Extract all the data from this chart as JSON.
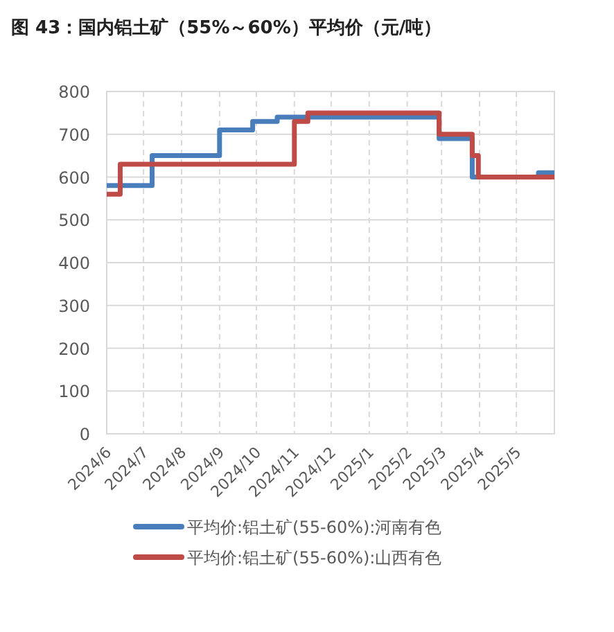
{
  "chart_data": {
    "type": "step",
    "title": "图 43：国内铝土矿（55%～60%）平均价（元/吨）",
    "xlim": [
      "2024-06-01",
      "2025-06-01"
    ],
    "xticks": [
      {
        "value": "2024-06",
        "label": "2024/6"
      },
      {
        "value": "2024-07",
        "label": "2024/7"
      },
      {
        "value": "2024-08",
        "label": "2024/8"
      },
      {
        "value": "2024-09",
        "label": "2024/9"
      },
      {
        "value": "2024-10",
        "label": "2024/10"
      },
      {
        "value": "2024-11",
        "label": "2024/11"
      },
      {
        "value": "2024-12",
        "label": "2024/12"
      },
      {
        "value": "2025-01",
        "label": "2025/1"
      },
      {
        "value": "2025-02",
        "label": "2025/2"
      },
      {
        "value": "2025-03",
        "label": "2025/3"
      },
      {
        "value": "2025-04",
        "label": "2025/4"
      },
      {
        "value": "2025-05",
        "label": "2025/5"
      }
    ],
    "ylim": [
      0,
      800
    ],
    "yticks": [
      0,
      100,
      200,
      300,
      400,
      500,
      600,
      700,
      800
    ],
    "grid": true,
    "legend": "bottom",
    "line_style": "solid",
    "marker": "none",
    "series": [
      {
        "name": "平均价:铝土矿(55-60%):河南有色",
        "color": "#4a7ebb",
        "x": [
          "2024-06-01",
          "2024-07-08",
          "2024-09-01",
          "2024-09-28",
          "2024-10-18",
          "2025-02-27",
          "2025-03-26",
          "2025-05-19",
          "2025-06-01"
        ],
        "values": [
          580,
          650,
          710,
          730,
          740,
          690,
          600,
          610,
          610
        ]
      },
      {
        "name": "平均价:铝土矿(55-60%):山西有色",
        "color": "#be4b48",
        "x": [
          "2024-06-01",
          "2024-06-12",
          "2024-11-01",
          "2024-11-12",
          "2025-02-27",
          "2025-03-26",
          "2025-03-31",
          "2025-06-01"
        ],
        "values": [
          560,
          630,
          730,
          750,
          700,
          650,
          600,
          600
        ]
      }
    ]
  }
}
